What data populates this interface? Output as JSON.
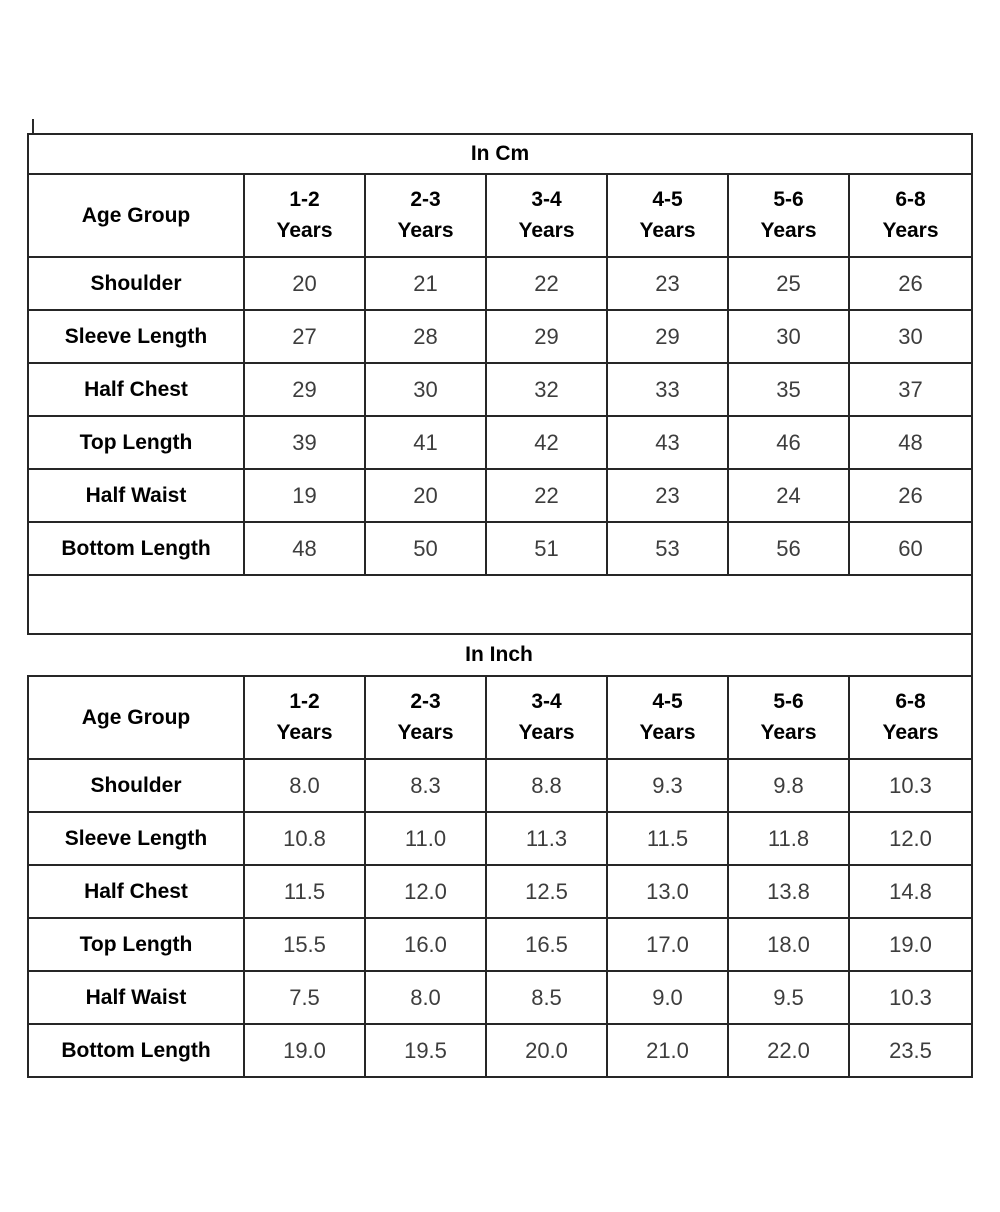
{
  "colors": {
    "background": "#ffffff",
    "border": "#262626",
    "label_text": "#000000",
    "value_text": "#3d3d3d"
  },
  "tables": [
    {
      "id": "cm",
      "title": "In Cm",
      "corner_label": "Age Group",
      "age_columns": [
        [
          "1-2",
          "Years"
        ],
        [
          "2-3",
          "Years"
        ],
        [
          "3-4",
          "Years"
        ],
        [
          "4-5",
          "Years"
        ],
        [
          "5-6",
          "Years"
        ],
        [
          "6-8",
          "Years"
        ]
      ],
      "rows": [
        {
          "label": "Shoulder",
          "values": [
            "20",
            "21",
            "22",
            "23",
            "25",
            "26"
          ]
        },
        {
          "label": "Sleeve Length",
          "values": [
            "27",
            "28",
            "29",
            "29",
            "30",
            "30"
          ]
        },
        {
          "label": "Half Chest",
          "values": [
            "29",
            "30",
            "32",
            "33",
            "35",
            "37"
          ]
        },
        {
          "label": "Top Length",
          "values": [
            "39",
            "41",
            "42",
            "43",
            "46",
            "48"
          ]
        },
        {
          "label": "Half Waist",
          "values": [
            "19",
            "20",
            "22",
            "23",
            "24",
            "26"
          ]
        },
        {
          "label": "Bottom Length",
          "values": [
            "48",
            "50",
            "51",
            "53",
            "56",
            "60"
          ]
        }
      ],
      "has_trailing_empty_row": true
    },
    {
      "id": "inch",
      "title": "In Inch",
      "corner_label": "Age Group",
      "age_columns": [
        [
          "1-2",
          "Years"
        ],
        [
          "2-3",
          "Years"
        ],
        [
          "3-4",
          "Years"
        ],
        [
          "4-5",
          "Years"
        ],
        [
          "5-6",
          "Years"
        ],
        [
          "6-8",
          "Years"
        ]
      ],
      "rows": [
        {
          "label": "Shoulder",
          "values": [
            "8.0",
            "8.3",
            "8.8",
            "9.3",
            "9.8",
            "10.3"
          ]
        },
        {
          "label": "Sleeve Length",
          "values": [
            "10.8",
            "11.0",
            "11.3",
            "11.5",
            "11.8",
            "12.0"
          ]
        },
        {
          "label": "Half Chest",
          "values": [
            "11.5",
            "12.0",
            "12.5",
            "13.0",
            "13.8",
            "14.8"
          ]
        },
        {
          "label": "Top Length",
          "values": [
            "15.5",
            "16.0",
            "16.5",
            "17.0",
            "18.0",
            "19.0"
          ]
        },
        {
          "label": "Half Waist",
          "values": [
            "7.5",
            "8.0",
            "8.5",
            "9.0",
            "9.5",
            "10.3"
          ]
        },
        {
          "label": "Bottom Length",
          "values": [
            "19.0",
            "19.5",
            "20.0",
            "21.0",
            "22.0",
            "23.5"
          ]
        }
      ],
      "has_trailing_empty_row": false
    }
  ]
}
